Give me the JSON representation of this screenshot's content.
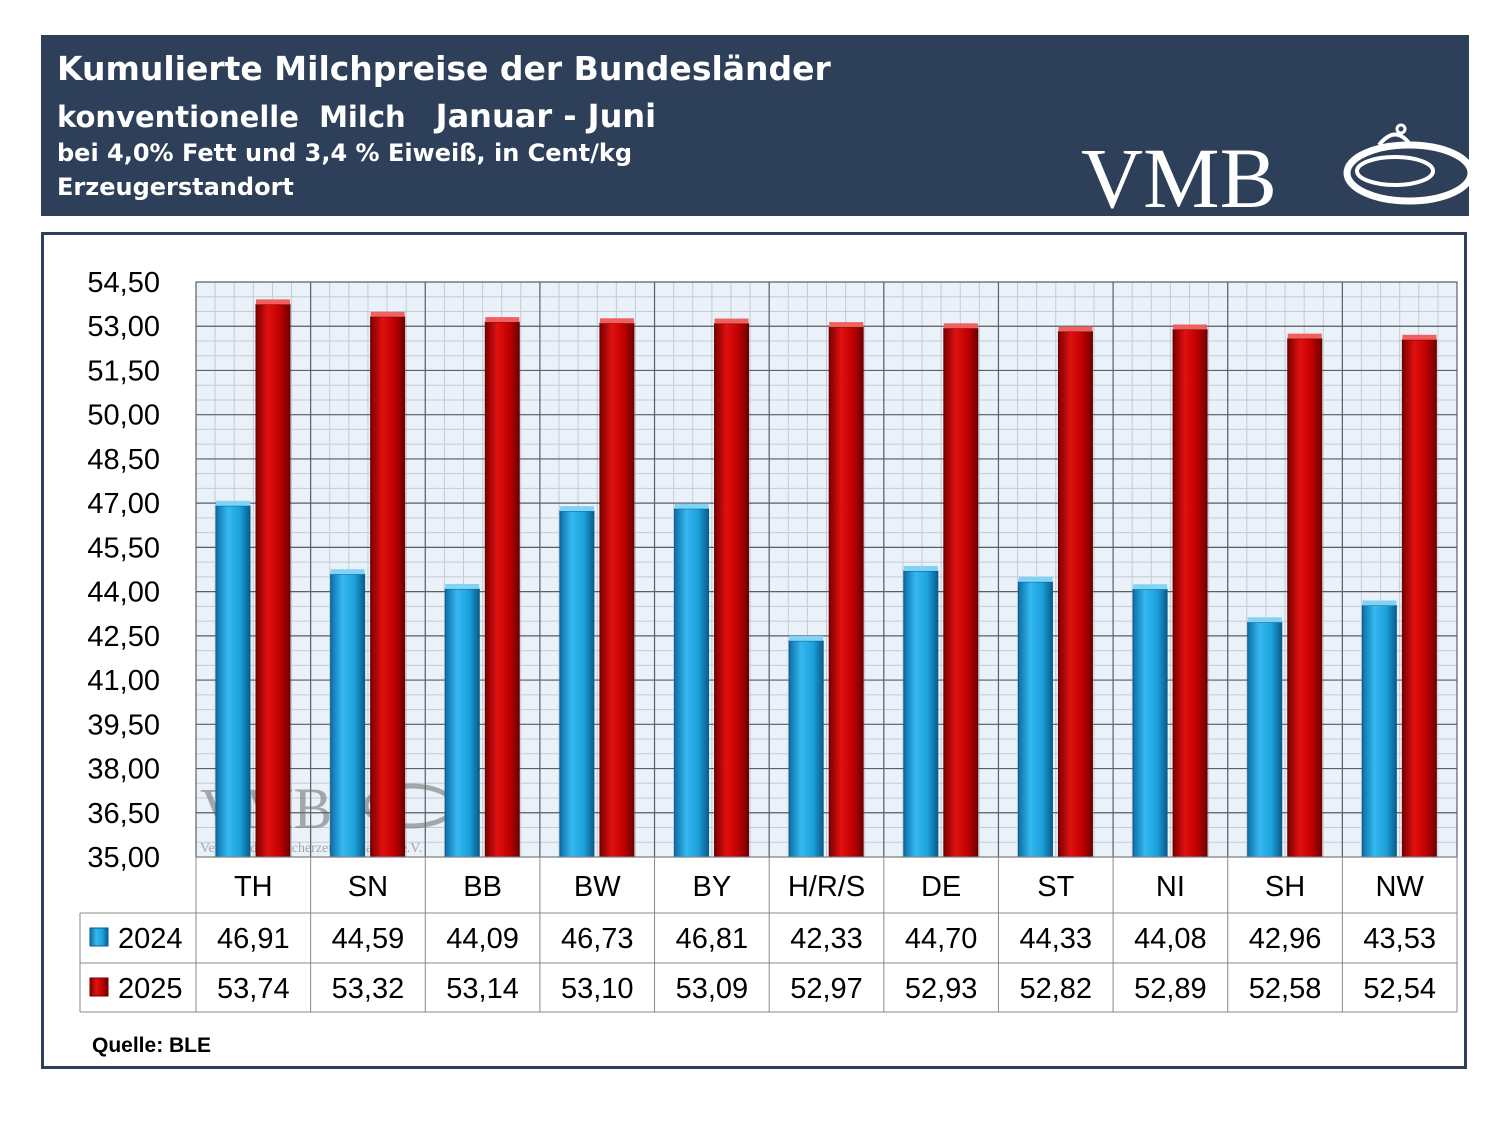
{
  "header": {
    "title": "Kumulierte Milchpreise der Bundesländer",
    "subtitle_left": "konventionelle  Milch",
    "subtitle_period": "Januar - Juni",
    "line3": "bei 4,0% Fett und 3,4 % Eiweiß, in Cent/kg",
    "line4": "Erzeugerstandort",
    "logo_text": "VMB"
  },
  "watermark": {
    "text": "VMB",
    "caption": "Verband der Milcherzeuger Bayern e.V."
  },
  "source": "Quelle: BLE",
  "colors": {
    "header_bg": "#2e4059",
    "series_2024": "#1ba1dc",
    "series_2025": "#c00000",
    "plot_bg": "#eaf1f8"
  },
  "chart_data": {
    "type": "bar",
    "categories": [
      "TH",
      "SN",
      "BB",
      "BW",
      "BY",
      "H/R/S",
      "DE",
      "ST",
      "NI",
      "SH",
      "NW"
    ],
    "series": [
      {
        "name": "2024",
        "values": [
          46.91,
          44.59,
          44.09,
          46.73,
          46.81,
          42.33,
          44.7,
          44.33,
          44.08,
          42.96,
          43.53
        ],
        "labels": [
          "46,91",
          "44,59",
          "44,09",
          "46,73",
          "46,81",
          "42,33",
          "44,70",
          "44,33",
          "44,08",
          "42,96",
          "43,53"
        ]
      },
      {
        "name": "2025",
        "values": [
          53.74,
          53.32,
          53.14,
          53.1,
          53.09,
          52.97,
          52.93,
          52.82,
          52.89,
          52.58,
          52.54
        ],
        "labels": [
          "53,74",
          "53,32",
          "53,14",
          "53,10",
          "53,09",
          "52,97",
          "52,93",
          "52,82",
          "52,89",
          "52,58",
          "52,54"
        ]
      }
    ],
    "ylim": [
      35.0,
      54.5
    ],
    "yticks": [
      "35,00",
      "36,50",
      "38,00",
      "39,50",
      "41,00",
      "42,50",
      "44,00",
      "45,50",
      "47,00",
      "48,50",
      "50,00",
      "51,50",
      "53,00",
      "54,50"
    ],
    "grid": true,
    "legend": "data-table"
  }
}
